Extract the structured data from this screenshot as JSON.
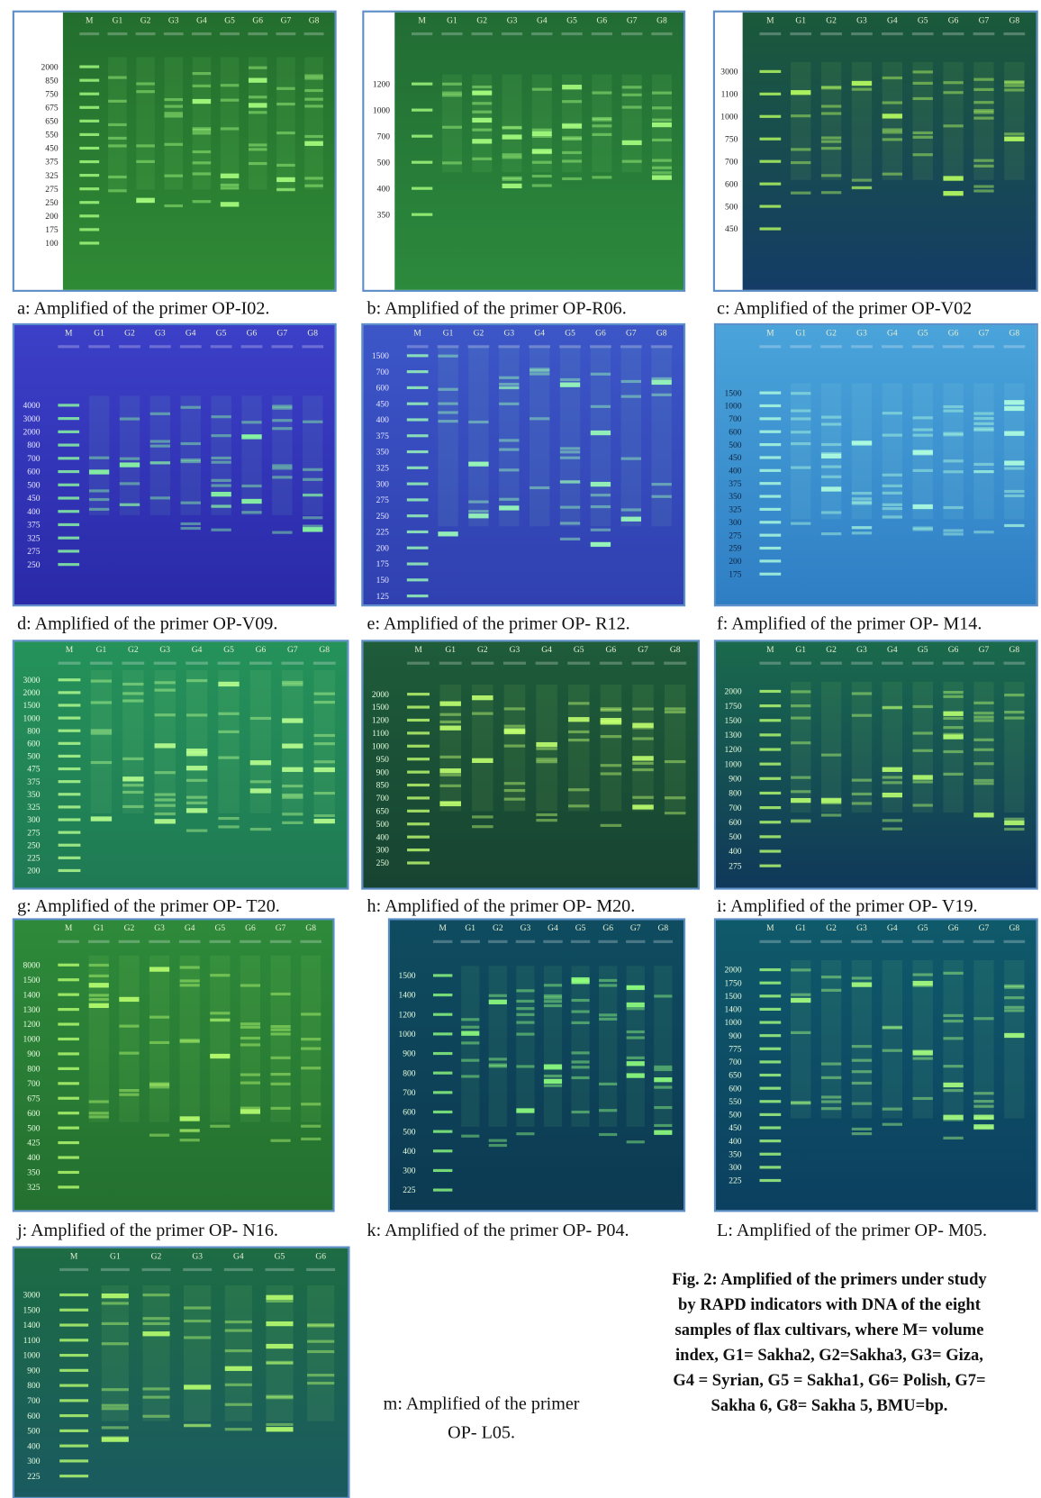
{
  "panels": [
    {
      "lanes": [
        "M",
        "G1",
        "G2",
        "G3",
        "G4",
        "G5",
        "G6",
        "G7",
        "G8"
      ],
      "sizes": [
        "2000",
        "850",
        "750",
        "675",
        "650",
        "550",
        "450",
        "375",
        "325",
        "275",
        "250",
        "200",
        "175",
        "100"
      ],
      "caption": "a: Amplified of the primer OP-I02."
    },
    {
      "lanes": [
        "M",
        "G1",
        "G2",
        "G3",
        "G4",
        "G5",
        "G6",
        "G7",
        "G8"
      ],
      "sizes": [
        "1200",
        "1000",
        "700",
        "500",
        "400",
        "350"
      ],
      "caption": "b: Amplified of the primer OP-R06."
    },
    {
      "lanes": [
        "M",
        "G1",
        "G2",
        "G3",
        "G4",
        "G5",
        "G6",
        "G7",
        "G8"
      ],
      "sizes": [
        "3000",
        "1100",
        "1000",
        "750",
        "700",
        "600",
        "500",
        "450"
      ],
      "caption": "c: Amplified of the primer OP-V02"
    },
    {
      "lanes": [
        "M",
        "G1",
        "G2",
        "G3",
        "G4",
        "G5",
        "G6",
        "G7",
        "G8"
      ],
      "sizes": [
        "4000",
        "3000",
        "2000",
        "800",
        "700",
        "600",
        "500",
        "450",
        "400",
        "375",
        "325",
        "275",
        "250"
      ],
      "caption": "d: Amplified of the primer OP-V09."
    },
    {
      "lanes": [
        "M",
        "G1",
        "G2",
        "G3",
        "G4",
        "G5",
        "G6",
        "G7",
        "G8"
      ],
      "sizes": [
        "1500",
        "700",
        "600",
        "450",
        "400",
        "375",
        "350",
        "325",
        "300",
        "275",
        "250",
        "225",
        "200",
        "175",
        "150",
        "125"
      ],
      "caption": "e: Amplified of the primer OP- R12."
    },
    {
      "lanes": [
        "M",
        "G1",
        "G2",
        "G3",
        "G4",
        "G5",
        "G6",
        "G7",
        "G8"
      ],
      "sizes": [
        "1500",
        "1000",
        "700",
        "600",
        "500",
        "450",
        "400",
        "375",
        "350",
        "325",
        "300",
        "275",
        "259",
        "200",
        "175"
      ],
      "caption": "f: Amplified of the primer OP- M14."
    },
    {
      "lanes": [
        "M",
        "G1",
        "G2",
        "G3",
        "G4",
        "G5",
        "G6",
        "G7",
        "G8"
      ],
      "sizes": [
        "3000",
        "2000",
        "1500",
        "1000",
        "800",
        "600",
        "500",
        "475",
        "375",
        "350",
        "325",
        "300",
        "275",
        "250",
        "225",
        "200"
      ],
      "caption": "g: Amplified of the primer OP- T20."
    },
    {
      "lanes": [
        "M",
        "G1",
        "G2",
        "G3",
        "G4",
        "G5",
        "G6",
        "G7",
        "G8"
      ],
      "sizes": [
        "2000",
        "1500",
        "1200",
        "1100",
        "1000",
        "950",
        "900",
        "850",
        "700",
        "650",
        "500",
        "400",
        "300",
        "250"
      ],
      "caption": "h: Amplified of the primer OP- M20."
    },
    {
      "lanes": [
        "M",
        "G1",
        "G2",
        "G3",
        "G4",
        "G5",
        "G6",
        "G7",
        "G8"
      ],
      "sizes": [
        "2000",
        "1750",
        "1500",
        "1300",
        "1200",
        "1000",
        "900",
        "800",
        "700",
        "600",
        "500",
        "400",
        "275"
      ],
      "caption": "i: Amplified of the primer OP- V19."
    },
    {
      "lanes": [
        "M",
        "G1",
        "G2",
        "G3",
        "G4",
        "G5",
        "G6",
        "G7",
        "G8"
      ],
      "sizes": [
        "8000",
        "1500",
        "1400",
        "1300",
        "1200",
        "1000",
        "900",
        "800",
        "700",
        "675",
        "600",
        "500",
        "425",
        "400",
        "350",
        "325"
      ],
      "caption": "j: Amplified of the primer OP- N16."
    },
    {
      "lanes": [
        "M",
        "G1",
        "G2",
        "G3",
        "G4",
        "G5",
        "G6",
        "G7",
        "G8"
      ],
      "sizes": [
        "1500",
        "1400",
        "1200",
        "1000",
        "900",
        "800",
        "700",
        "600",
        "500",
        "400",
        "300",
        "225"
      ],
      "caption": "k: Amplified of the primer OP- P04."
    },
    {
      "lanes": [
        "M",
        "G1",
        "G2",
        "G3",
        "G4",
        "G5",
        "G6",
        "G7",
        "G8"
      ],
      "sizes": [
        "2000",
        "1750",
        "1500",
        "1400",
        "1000",
        "900",
        "775",
        "700",
        "650",
        "600",
        "550",
        "500",
        "450",
        "400",
        "350",
        "300",
        "225"
      ],
      "caption": "L: Amplified of the primer OP- M05."
    },
    {
      "lanes": [
        "M",
        "G1",
        "G2",
        "G3",
        "G4",
        "G5",
        "G6"
      ],
      "sizes": [
        "3000",
        "1500",
        "1400",
        "1100",
        "1000",
        "900",
        "800",
        "700",
        "600",
        "500",
        "400",
        "300",
        "225"
      ],
      "caption": [
        "m: Amplified of the primer",
        "OP- L05."
      ]
    }
  ],
  "figure_caption": [
    "Fig. 2: Amplified of the primers under study",
    "by RAPD indicators with DNA of the eight",
    "samples of flax cultivars, where M= volume",
    "index, G1= Sakha2, G2=Sakha3, G3= Giza,",
    "G4 = Syrian, G5 = Sakha1, G6= Polish, G7=",
    "Sakha 6, G8= Sakha 5, BMU=bp."
  ]
}
